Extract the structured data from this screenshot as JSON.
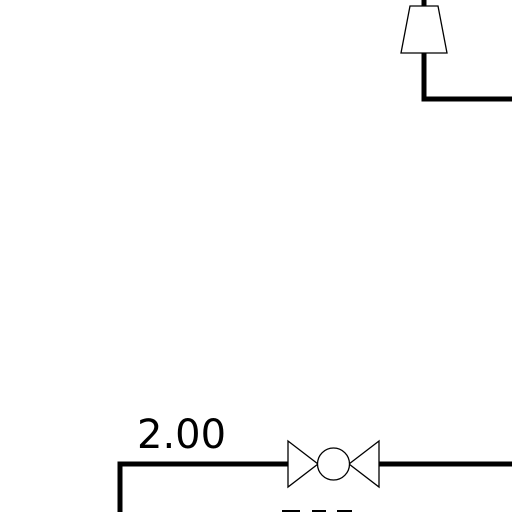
{
  "diagram": {
    "line_color": "#000000",
    "background": "#ffffff",
    "labels": {
      "pipe_size": "2.00"
    },
    "symbols": [
      {
        "name": "reducer-fitting",
        "kind": "reducer"
      },
      {
        "name": "gate-valve",
        "kind": "valve"
      }
    ]
  }
}
